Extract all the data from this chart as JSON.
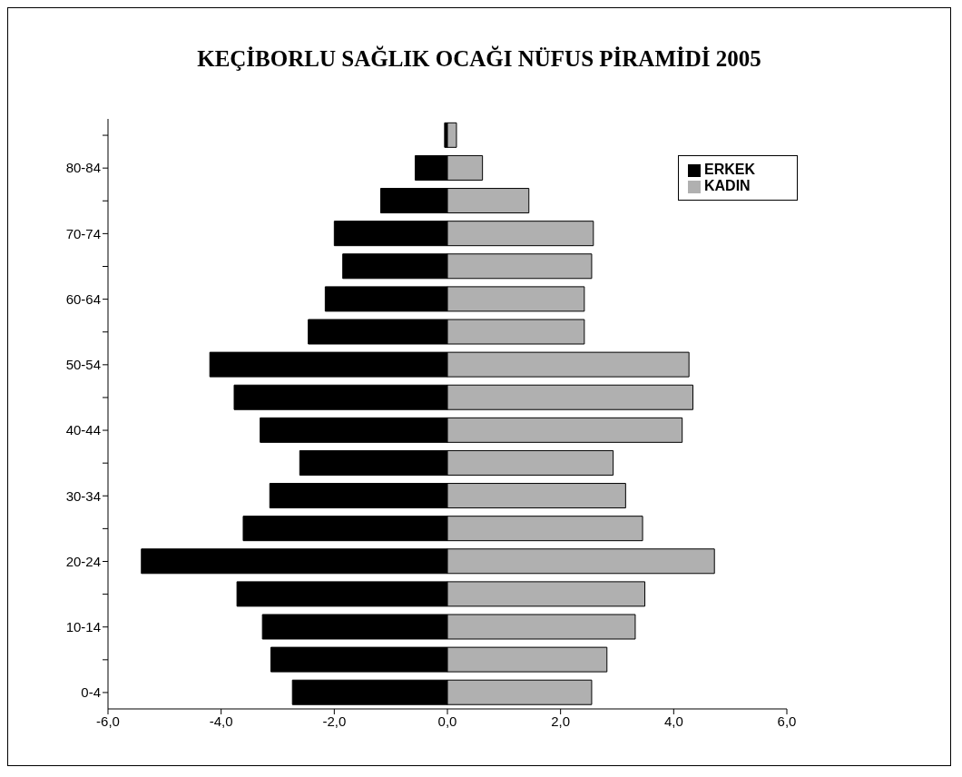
{
  "chart_data": {
    "type": "bar",
    "title": "KEÇİBORLU SAĞLIK OCAĞI NÜFUS PİRAMİDİ 2005",
    "orientation": "horizontal",
    "stacked": true,
    "categories": [
      null,
      "80-84",
      null,
      "70-74",
      null,
      "60-64",
      null,
      "50-54",
      null,
      "40-44",
      null,
      "30-34",
      null,
      "20-24",
      null,
      "10-14",
      null,
      "0-4"
    ],
    "series": [
      {
        "name": "ERKEK",
        "color": "#000000",
        "values": [
          -0.05,
          -0.57,
          -1.18,
          -2.0,
          -1.85,
          -2.16,
          -2.46,
          -4.2,
          -3.77,
          -3.31,
          -2.61,
          -3.14,
          -3.61,
          -5.41,
          -3.72,
          -3.27,
          -3.12,
          -2.74
        ]
      },
      {
        "name": "KADIN",
        "color": "#b0b0b0",
        "values": [
          0.16,
          0.62,
          1.44,
          2.58,
          2.55,
          2.42,
          2.42,
          4.27,
          4.34,
          4.15,
          2.93,
          3.15,
          3.45,
          4.72,
          3.49,
          3.32,
          2.82,
          2.55
        ]
      }
    ],
    "xlim": [
      -6,
      6
    ],
    "xticks": [
      {
        "value": -6,
        "label": "-6,0"
      },
      {
        "value": -4,
        "label": "-4,0"
      },
      {
        "value": -2,
        "label": "-2,0"
      },
      {
        "value": 0,
        "label": "0,0"
      },
      {
        "value": 2,
        "label": "2,0"
      },
      {
        "value": 4,
        "label": "4,0"
      },
      {
        "value": 6,
        "label": "6,0"
      }
    ],
    "grid": false,
    "legend": "top right"
  }
}
